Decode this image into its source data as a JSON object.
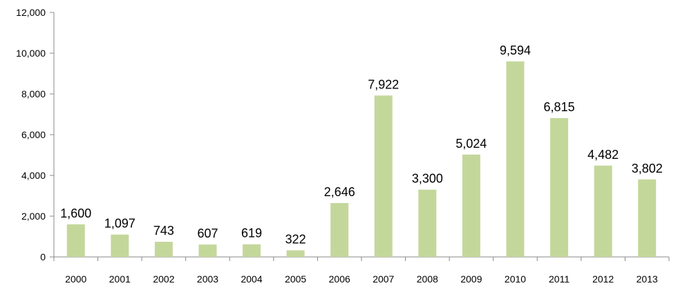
{
  "chart_data": {
    "type": "bar",
    "title": "",
    "xlabel": "",
    "ylabel": "",
    "categories": [
      "2000",
      "2001",
      "2002",
      "2003",
      "2004",
      "2005",
      "2006",
      "2007",
      "2008",
      "2009",
      "2010",
      "2011",
      "2012",
      "2013"
    ],
    "values": [
      1600,
      1097,
      743,
      607,
      619,
      322,
      2646,
      7922,
      3300,
      5024,
      9594,
      6815,
      4482,
      3802
    ],
    "data_labels": [
      "1,600",
      "1,097",
      "743",
      "607",
      "619",
      "322",
      "2,646",
      "7,922",
      "3,300",
      "5,024",
      "9,594",
      "6,815",
      "4,482",
      "3,802"
    ],
    "ylim": [
      0,
      12000
    ],
    "yticks": [
      0,
      2000,
      4000,
      6000,
      8000,
      10000,
      12000
    ],
    "ytick_labels": [
      "0",
      "2,000",
      "4,000",
      "6,000",
      "8,000",
      "10,000",
      "12,000"
    ],
    "grid": false,
    "legend": "none",
    "bar_color": "#c4d79b",
    "axis_color": "#888888"
  }
}
